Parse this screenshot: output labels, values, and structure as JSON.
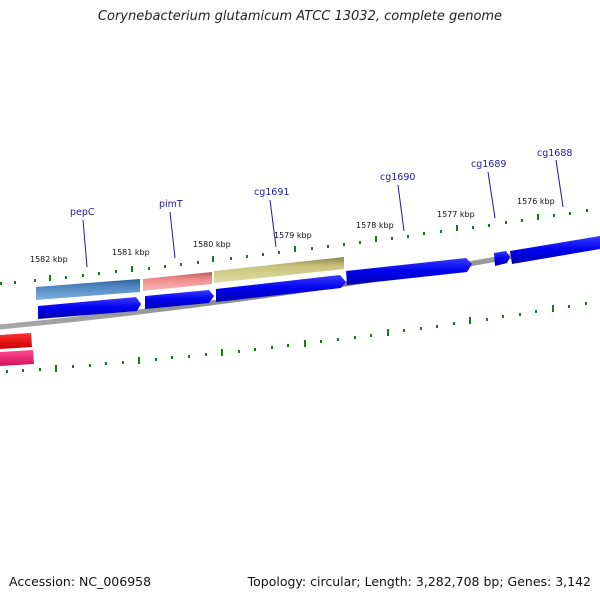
{
  "title": "Corynebacterium glutamicum ATCC 13032, complete genome",
  "accession": "Accession: NC_006958",
  "summary": "Topology: circular; Length: 3,282,708 bp; Genes: 3,142",
  "kbp_labels": [
    "1582 kbp",
    "1581 kbp",
    "1580 kbp",
    "1579 kbp",
    "1578 kbp",
    "1577 kbp",
    "1576 kbp"
  ],
  "gene_labels": [
    "pepC",
    "pimT",
    "cg1691",
    "cg1690",
    "cg1689",
    "cg1688"
  ],
  "colors": {
    "backbone": "#808080",
    "tick": "#1a7a1a",
    "cds_blue": "#0000ee",
    "pepC": "#4f86c0",
    "pimT": "#ee8888",
    "cg1691": "#c8c27a",
    "red_feature": "#ee1111",
    "pink_feature": "#ee2277",
    "label": "#1a1aa6"
  }
}
